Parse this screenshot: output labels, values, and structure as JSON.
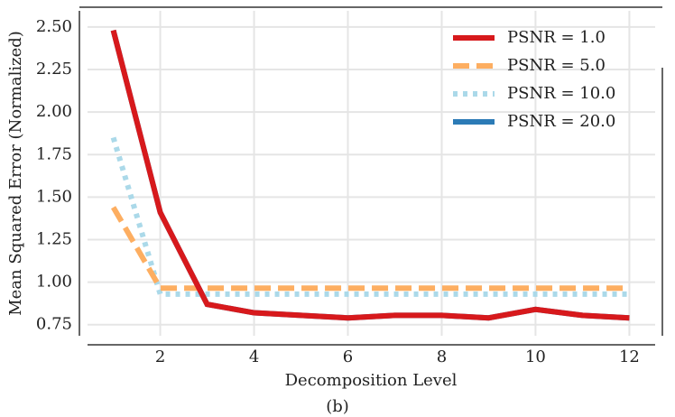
{
  "chart_data": {
    "type": "line",
    "subtitle": "(b)",
    "x_label": "Decomposition Level",
    "y_label": "Mean Squared Error (Normalized)",
    "x": [
      1,
      2,
      3,
      4,
      5,
      6,
      7,
      8,
      9,
      10,
      11,
      12
    ],
    "series": [
      {
        "name": "PSNR = 1.0",
        "color": "#d7191c",
        "linestyle": "solid",
        "values": [
          2.48,
          1.41,
          0.87,
          0.82,
          0.805,
          0.79,
          0.805,
          0.805,
          0.79,
          0.84,
          0.805,
          0.79
        ]
      },
      {
        "name": "PSNR = 5.0",
        "color": "#fdae61",
        "linestyle": "dashed",
        "values": [
          1.44,
          0.965,
          0.965,
          0.965,
          0.965,
          0.965,
          0.965,
          0.965,
          0.965,
          0.965,
          0.965,
          0.965
        ]
      },
      {
        "name": "PSNR = 10.0",
        "color": "#abd9e9",
        "linestyle": "dotted",
        "values": [
          1.85,
          0.93,
          0.93,
          0.93,
          0.93,
          0.93,
          0.93,
          0.93,
          0.93,
          0.93,
          0.93,
          0.93
        ]
      },
      {
        "name": "PSNR = 20.0",
        "color": "#2c7bb6",
        "linestyle": "solid",
        "values": [
          2.48,
          1.41,
          0.87,
          0.82,
          0.805,
          0.79,
          0.805,
          0.805,
          0.79,
          0.84,
          0.805,
          0.79
        ]
      }
    ],
    "xlim": [
      0.45,
      12.55
    ],
    "xticks": [
      2,
      4,
      6,
      8,
      10,
      12
    ],
    "ylim": [
      0.685,
      2.595
    ],
    "yticks": [
      0.75,
      {
        "value": 1.0,
        "label": "1.00"
      },
      1.25,
      {
        "value": 1.5,
        "label": "1.50"
      },
      1.75,
      {
        "value": 2.0,
        "label": "2.00"
      },
      2.25,
      {
        "value": 2.5,
        "label": "2.50"
      }
    ],
    "grid": true,
    "legend": "upper right"
  }
}
